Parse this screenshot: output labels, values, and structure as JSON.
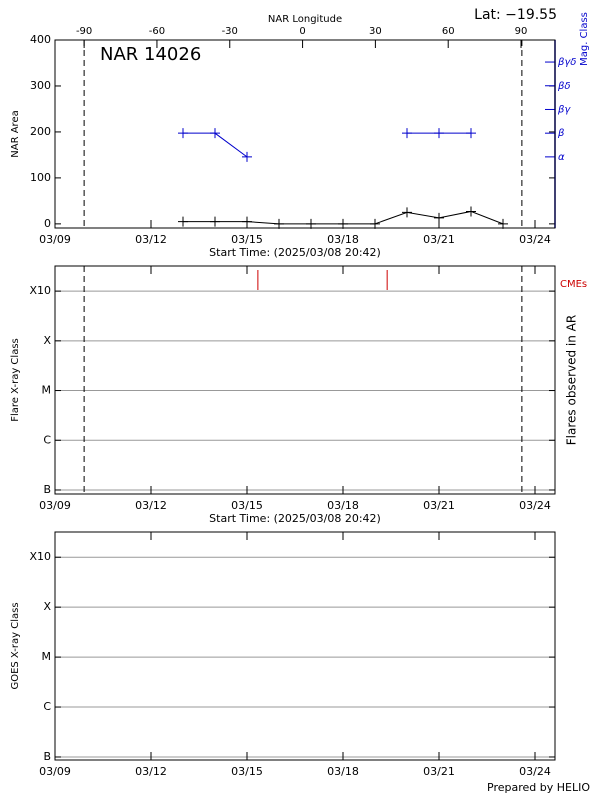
{
  "chart_data": [
    {
      "type": "line",
      "title": "NAR 14026",
      "annotation": "Lat: −19.55",
      "ylabel": "NAR Area",
      "y2label": "Mag. Class",
      "x2label": "NAR Longitude",
      "xlabel": "Start Time: (2025/03/08 20:42)",
      "xlim": [
        9,
        24.625
      ],
      "xticks": [
        {
          "value": 9,
          "label": "03/09"
        },
        {
          "value": 12,
          "label": "03/12"
        },
        {
          "value": 15,
          "label": "03/15"
        },
        {
          "value": 18,
          "label": "03/18"
        },
        {
          "value": 21,
          "label": "03/21"
        },
        {
          "value": 24,
          "label": "03/24"
        }
      ],
      "x2lim": [
        -102,
        104
      ],
      "x2ticks": [
        -90,
        -60,
        -30,
        0,
        30,
        60,
        90
      ],
      "ylim": [
        -9,
        400
      ],
      "yticks": [
        0,
        100,
        200,
        300,
        400
      ],
      "y2lim": [
        0,
        7.93
      ],
      "y2ticks": [
        {
          "value": 3,
          "label": "α"
        },
        {
          "value": 4,
          "label": "β"
        },
        {
          "value": 5,
          "label": "βγ"
        },
        {
          "value": 6,
          "label": "βδ"
        },
        {
          "value": 7,
          "label": "βγδ"
        }
      ],
      "y2color": "#0000cc",
      "limb_lines_x": [
        9.91,
        23.59
      ],
      "x": [
        13,
        14,
        15,
        16,
        17,
        18,
        19,
        20,
        21,
        22,
        23
      ],
      "series": [
        {
          "name": "NAR Area",
          "color": "#000000",
          "values": [
            5,
            5,
            5,
            0,
            0,
            0,
            0,
            25,
            13,
            27,
            0
          ]
        },
        {
          "name": "Mag. Class",
          "color": "#0000cc",
          "axis": "y2",
          "values": [
            4,
            4,
            3,
            null,
            null,
            null,
            null,
            4,
            4,
            4,
            null
          ]
        }
      ]
    },
    {
      "type": "events",
      "ylabel": "Flare X-ray Class",
      "y2label": "Flares observed in AR",
      "xlabel": "Start Time: (2025/03/08 20:42)",
      "xlim": [
        9,
        24.625
      ],
      "xticks": [
        {
          "value": 9,
          "label": "03/09"
        },
        {
          "value": 12,
          "label": "03/12"
        },
        {
          "value": 15,
          "label": "03/15"
        },
        {
          "value": 18,
          "label": "03/18"
        },
        {
          "value": 21,
          "label": "03/21"
        },
        {
          "value": 24,
          "label": "03/24"
        }
      ],
      "yscale": "log",
      "ylim": [
        8.3e-08,
        0.0032
      ],
      "yticks": [
        {
          "value": 1e-07,
          "label": "B"
        },
        {
          "value": 1e-06,
          "label": "C"
        },
        {
          "value": 1e-05,
          "label": "M"
        },
        {
          "value": 0.0001,
          "label": "X"
        },
        {
          "value": 0.001,
          "label": "X10"
        }
      ],
      "grid": true,
      "limb_lines_x": [
        9.91,
        23.59
      ],
      "cme_label": "CMEs",
      "cme_color": "#cc0000",
      "cme_x": [
        15.34,
        19.38
      ]
    },
    {
      "type": "events",
      "ylabel": "GOES X-ray Class",
      "xlim": [
        9,
        24.625
      ],
      "xticks": [
        {
          "value": 9,
          "label": "03/09"
        },
        {
          "value": 12,
          "label": "03/12"
        },
        {
          "value": 15,
          "label": "03/15"
        },
        {
          "value": 18,
          "label": "03/18"
        },
        {
          "value": 21,
          "label": "03/21"
        },
        {
          "value": 24,
          "label": "03/24"
        }
      ],
      "yscale": "log",
      "ylim": [
        8.7e-08,
        0.0032
      ],
      "yticks": [
        {
          "value": 1e-07,
          "label": "B"
        },
        {
          "value": 1e-06,
          "label": "C"
        },
        {
          "value": 1e-05,
          "label": "M"
        },
        {
          "value": 0.0001,
          "label": "X"
        },
        {
          "value": 0.001,
          "label": "X10"
        }
      ],
      "grid": true
    }
  ],
  "credit": "Prepared by HELIO"
}
